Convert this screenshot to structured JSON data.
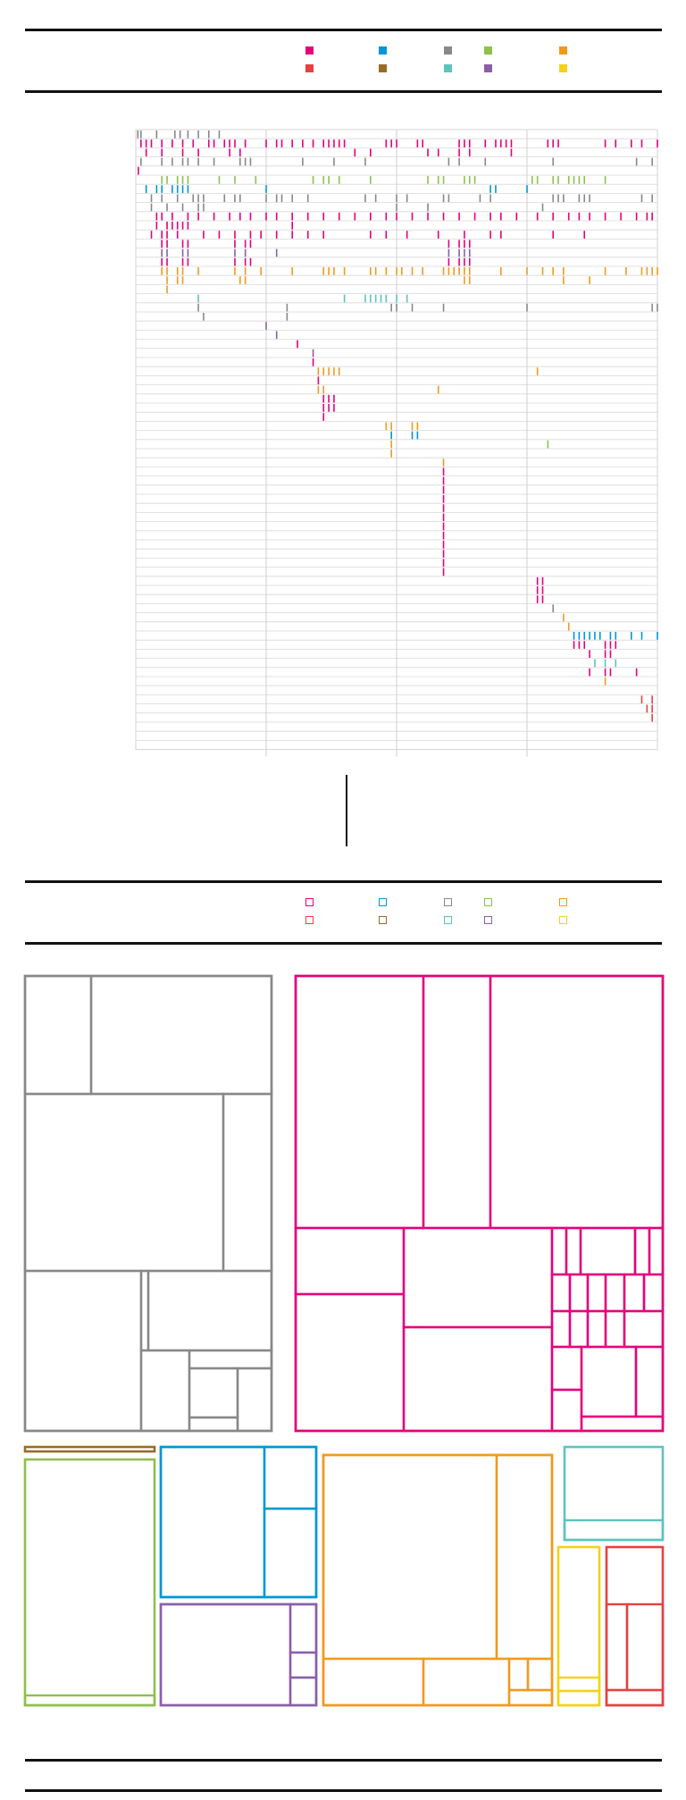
{
  "chart_data": [
    {
      "type": "timeline",
      "legend": {
        "entries": [
          {
            "color": "#e4007c"
          },
          {
            "color": "#e84040"
          },
          {
            "color": "#0096d6"
          },
          {
            "color": "#9a6a28"
          },
          {
            "color": "#888888"
          },
          {
            "color": "#5bc4bf"
          },
          {
            "color": "#8dc04d"
          },
          {
            "color": "#8a5fa8"
          },
          {
            "color": "#f09a1c"
          },
          {
            "color": "#f7d117"
          }
        ]
      },
      "rows": 68,
      "events": [
        {
          "row": 0,
          "color": "#888888",
          "x": [
            0.004,
            0.01,
            0.04,
            0.075,
            0.085,
            0.1,
            0.12,
            0.14,
            0.16
          ]
        },
        {
          "row": 1,
          "color": "#e4007c",
          "x": [
            0.01,
            0.02,
            0.03,
            0.05,
            0.07,
            0.09,
            0.11,
            0.14,
            0.15,
            0.17,
            0.18,
            0.19,
            0.21,
            0.25,
            0.27,
            0.28,
            0.3,
            0.32,
            0.34,
            0.36,
            0.37,
            0.38,
            0.39,
            0.4,
            0.48,
            0.49,
            0.5,
            0.54,
            0.55,
            0.62,
            0.63,
            0.64,
            0.67,
            0.69,
            0.7,
            0.71,
            0.72,
            0.79,
            0.8,
            0.81,
            0.9,
            0.92,
            0.95,
            0.97,
            1.0
          ]
        },
        {
          "row": 2,
          "color": "#e4007c",
          "x": [
            0.02,
            0.05,
            0.09,
            0.12,
            0.18,
            0.2,
            0.42,
            0.45,
            0.56,
            0.58,
            0.62,
            0.64,
            0.72
          ]
        },
        {
          "row": 3,
          "color": "#888888",
          "x": [
            0.01,
            0.05,
            0.07,
            0.09,
            0.1,
            0.12,
            0.15,
            0.2,
            0.21,
            0.22,
            0.32,
            0.38,
            0.44,
            0.6,
            0.62,
            0.67,
            0.8,
            0.96,
            0.99
          ]
        },
        {
          "row": 4,
          "color": "#e4007c",
          "x": [
            0.005
          ]
        },
        {
          "row": 5,
          "color": "#8dc04d",
          "x": [
            0.05,
            0.06,
            0.08,
            0.09,
            0.1,
            0.16,
            0.19,
            0.23,
            0.34,
            0.36,
            0.37,
            0.39,
            0.45,
            0.56,
            0.58,
            0.59,
            0.63,
            0.64,
            0.65,
            0.76,
            0.77,
            0.8,
            0.81,
            0.83,
            0.84,
            0.85,
            0.86,
            0.9
          ]
        },
        {
          "row": 6,
          "color": "#0096d6",
          "x": [
            0.02,
            0.04,
            0.05,
            0.07,
            0.08,
            0.09,
            0.1,
            0.25,
            0.68,
            0.69,
            0.75
          ]
        },
        {
          "row": 7,
          "color": "#888888",
          "x": [
            0.03,
            0.05,
            0.08,
            0.11,
            0.12,
            0.13,
            0.17,
            0.19,
            0.2,
            0.25,
            0.27,
            0.28,
            0.3,
            0.33,
            0.44,
            0.46,
            0.5,
            0.52,
            0.59,
            0.6,
            0.66,
            0.68,
            0.8,
            0.81,
            0.82,
            0.85,
            0.86,
            0.87,
            0.97,
            0.99
          ]
        },
        {
          "row": 8,
          "color": "#888888",
          "x": [
            0.03,
            0.06,
            0.09,
            0.12,
            0.13,
            0.5,
            0.56,
            0.78
          ]
        },
        {
          "row": 9,
          "color": "#e4007c",
          "x": [
            0.04,
            0.05,
            0.07,
            0.1,
            0.12,
            0.15,
            0.18,
            0.2,
            0.22,
            0.25,
            0.27,
            0.3,
            0.33,
            0.36,
            0.39,
            0.42,
            0.45,
            0.48,
            0.5,
            0.53,
            0.56,
            0.59,
            0.62,
            0.65,
            0.68,
            0.7,
            0.73,
            0.77,
            0.8,
            0.83,
            0.85,
            0.87,
            0.9,
            0.93,
            0.96,
            0.98,
            0.99
          ]
        },
        {
          "row": 10,
          "color": "#e4007c",
          "x": [
            0.04,
            0.06,
            0.07,
            0.08,
            0.09,
            0.1,
            0.3
          ]
        },
        {
          "row": 11,
          "color": "#e4007c",
          "x": [
            0.03,
            0.05,
            0.06,
            0.08,
            0.13,
            0.16,
            0.19,
            0.22,
            0.24,
            0.27,
            0.3,
            0.33,
            0.36,
            0.45,
            0.48,
            0.52,
            0.58,
            0.63,
            0.68,
            0.7,
            0.8,
            0.86
          ]
        },
        {
          "row": 12,
          "color": "#e4007c",
          "x": [
            0.05,
            0.06,
            0.09,
            0.1,
            0.19,
            0.21,
            0.22,
            0.6,
            0.62,
            0.63,
            0.64
          ]
        },
        {
          "row": 13,
          "color": "#8a5fa8",
          "x": [
            0.05,
            0.06,
            0.09,
            0.1,
            0.19,
            0.21,
            0.27,
            0.6,
            0.62,
            0.63,
            0.64
          ]
        },
        {
          "row": 14,
          "color": "#e4007c",
          "x": [
            0.05,
            0.06,
            0.09,
            0.1,
            0.19,
            0.21,
            0.22,
            0.6,
            0.62,
            0.63,
            0.64
          ]
        },
        {
          "row": 15,
          "color": "#f09a1c",
          "x": [
            0.05,
            0.06,
            0.08,
            0.09,
            0.12,
            0.19,
            0.21,
            0.24,
            0.3,
            0.36,
            0.37,
            0.38,
            0.4,
            0.45,
            0.46,
            0.48,
            0.5,
            0.51,
            0.53,
            0.55,
            0.59,
            0.6,
            0.61,
            0.62,
            0.63,
            0.64,
            0.7,
            0.75,
            0.78,
            0.8,
            0.82,
            0.9,
            0.94,
            0.97,
            0.98,
            0.99,
            1.0
          ]
        },
        {
          "row": 16,
          "color": "#f09a1c",
          "x": [
            0.06,
            0.08,
            0.09,
            0.2,
            0.21,
            0.63,
            0.64,
            0.82,
            0.87
          ]
        },
        {
          "row": 17,
          "color": "#f09a1c",
          "x": [
            0.06
          ]
        },
        {
          "row": 18,
          "color": "#5bc4bf",
          "x": [
            0.12,
            0.4,
            0.44,
            0.45,
            0.46,
            0.47,
            0.48,
            0.5,
            0.52
          ]
        },
        {
          "row": 19,
          "color": "#888888",
          "x": [
            0.12,
            0.29,
            0.49,
            0.5,
            0.53,
            0.59,
            0.75,
            0.99,
            1.0
          ]
        },
        {
          "row": 20,
          "color": "#888888",
          "x": [
            0.13,
            0.29
          ]
        },
        {
          "row": 21,
          "color": "#8a5fa8",
          "x": [
            0.25
          ]
        },
        {
          "row": 22,
          "color": "#8a5fa8",
          "x": [
            0.27
          ]
        },
        {
          "row": 23,
          "color": "#e4007c",
          "x": [
            0.31
          ]
        },
        {
          "row": 24,
          "color": "#8a5fa8",
          "x": [
            0.34
          ]
        },
        {
          "row": 25,
          "color": "#e4007c",
          "x": [
            0.34
          ]
        },
        {
          "row": 26,
          "color": "#f09a1c",
          "x": [
            0.35,
            0.36,
            0.37,
            0.38,
            0.39,
            0.77
          ]
        },
        {
          "row": 27,
          "color": "#e4007c",
          "x": [
            0.35
          ]
        },
        {
          "row": 28,
          "color": "#f09a1c",
          "x": [
            0.35,
            0.36,
            0.58
          ]
        },
        {
          "row": 29,
          "color": "#e4007c",
          "x": [
            0.36,
            0.37,
            0.38
          ]
        },
        {
          "row": 30,
          "color": "#e4007c",
          "x": [
            0.36,
            0.37,
            0.38
          ]
        },
        {
          "row": 31,
          "color": "#e4007c",
          "x": [
            0.36
          ]
        },
        {
          "row": 32,
          "color": "#f09a1c",
          "x": [
            0.48,
            0.49,
            0.53,
            0.54
          ]
        },
        {
          "row": 33,
          "color": "#0096d6",
          "x": [
            0.49,
            0.53,
            0.54
          ]
        },
        {
          "row": 34,
          "color": "#f09a1c",
          "x": [
            0.49
          ]
        },
        {
          "row": 34,
          "color": "#8dc04d",
          "x": [
            0.79
          ]
        },
        {
          "row": 35,
          "color": "#f09a1c",
          "x": [
            0.49
          ]
        },
        {
          "row": 36,
          "color": "#f09a1c",
          "x": [
            0.59
          ]
        },
        {
          "row": 37,
          "color": "#e4007c",
          "x": [
            0.59
          ]
        },
        {
          "row": 38,
          "color": "#e4007c",
          "x": [
            0.59
          ]
        },
        {
          "row": 39,
          "color": "#e4007c",
          "x": [
            0.59
          ]
        },
        {
          "row": 40,
          "color": "#e4007c",
          "x": [
            0.59
          ]
        },
        {
          "row": 41,
          "color": "#e4007c",
          "x": [
            0.59
          ]
        },
        {
          "row": 42,
          "color": "#e4007c",
          "x": [
            0.59
          ]
        },
        {
          "row": 43,
          "color": "#e4007c",
          "x": [
            0.59
          ]
        },
        {
          "row": 44,
          "color": "#e4007c",
          "x": [
            0.59
          ]
        },
        {
          "row": 45,
          "color": "#e4007c",
          "x": [
            0.59
          ]
        },
        {
          "row": 46,
          "color": "#e4007c",
          "x": [
            0.59
          ]
        },
        {
          "row": 47,
          "color": "#e4007c",
          "x": [
            0.59
          ]
        },
        {
          "row": 48,
          "color": "#e4007c",
          "x": [
            0.59
          ]
        },
        {
          "row": 49,
          "color": "#e4007c",
          "x": [
            0.77,
            0.78
          ]
        },
        {
          "row": 50,
          "color": "#e4007c",
          "x": [
            0.77,
            0.78
          ]
        },
        {
          "row": 51,
          "color": "#e4007c",
          "x": [
            0.77,
            0.78
          ]
        },
        {
          "row": 52,
          "color": "#888888",
          "x": [
            0.8
          ]
        },
        {
          "row": 53,
          "color": "#f09a1c",
          "x": [
            0.82
          ]
        },
        {
          "row": 54,
          "color": "#f09a1c",
          "x": [
            0.83
          ]
        },
        {
          "row": 55,
          "color": "#0096d6",
          "x": [
            0.84,
            0.85,
            0.86,
            0.87,
            0.88,
            0.89,
            0.91,
            0.92,
            0.95,
            0.97,
            1.0
          ]
        },
        {
          "row": 56,
          "color": "#e4007c",
          "x": [
            0.84,
            0.85,
            0.86,
            0.9,
            0.91,
            0.92
          ]
        },
        {
          "row": 57,
          "color": "#e4007c",
          "x": [
            0.87,
            0.9,
            0.91
          ]
        },
        {
          "row": 58,
          "color": "#5bc4bf",
          "x": [
            0.88,
            0.9,
            0.92
          ]
        },
        {
          "row": 59,
          "color": "#e4007c",
          "x": [
            0.87,
            0.9,
            0.91,
            0.96
          ]
        },
        {
          "row": 60,
          "color": "#f09a1c",
          "x": [
            0.9
          ]
        },
        {
          "row": 62,
          "color": "#e84040",
          "x": [
            0.97,
            0.99
          ]
        },
        {
          "row": 63,
          "color": "#e84040",
          "x": [
            0.98,
            0.99
          ]
        },
        {
          "row": 64,
          "color": "#e84040",
          "x": [
            0.99
          ]
        }
      ]
    },
    {
      "type": "treemap",
      "legend": {
        "entries": [
          {
            "color": "#e4007c"
          },
          {
            "color": "#e84040"
          },
          {
            "color": "#0096d6"
          },
          {
            "color": "#9a6a28"
          },
          {
            "color": "#888888"
          },
          {
            "color": "#5bc4bf"
          },
          {
            "color": "#8dc04d"
          },
          {
            "color": "#8a5fa8"
          },
          {
            "color": "#f09a1c"
          },
          {
            "color": "#f7d117"
          }
        ]
      },
      "groups": [
        {
          "color": "#888888",
          "share": 0.165
        },
        {
          "color": "#e4007c",
          "share": 0.25
        },
        {
          "color": "#9a6a28",
          "share": 0.003
        },
        {
          "color": "#8dc04d",
          "share": 0.06
        },
        {
          "color": "#0096d6",
          "share": 0.06
        },
        {
          "color": "#8a5fa8",
          "share": 0.04
        },
        {
          "color": "#f09a1c",
          "share": 0.085
        },
        {
          "color": "#5bc4bf",
          "share": 0.03
        },
        {
          "color": "#f7d117",
          "share": 0.02
        },
        {
          "color": "#e84040",
          "share": 0.025
        }
      ]
    }
  ]
}
